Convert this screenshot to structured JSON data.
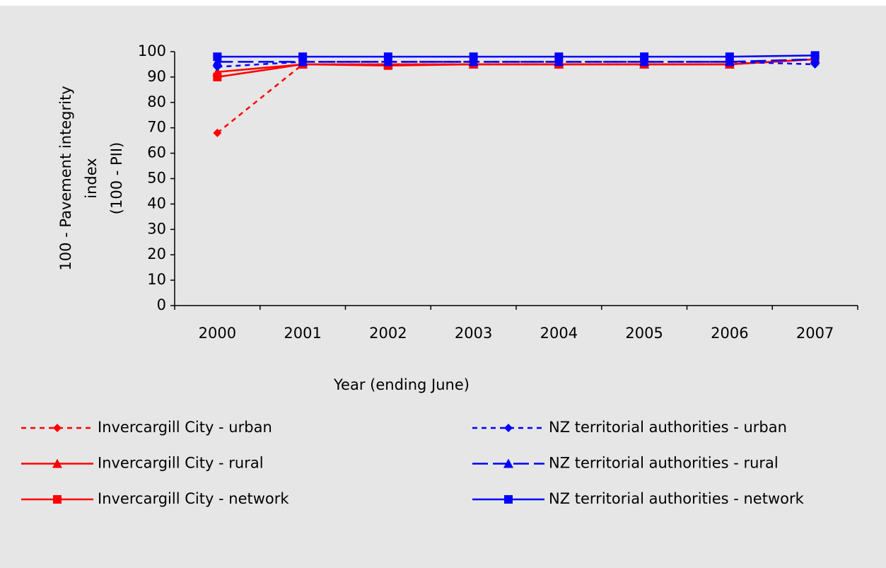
{
  "chart_data": {
    "type": "line",
    "y_label": [
      "100 - Pavement integrity",
      "index",
      "(100 - PII)"
    ],
    "x_label": "Year (ending June)",
    "categories": [
      "2000",
      "2001",
      "2002",
      "2003",
      "2004",
      "2005",
      "2006",
      "2007"
    ],
    "series": [
      {
        "name": "Invercargill City - urban",
        "color": "#ff0000",
        "dash": "dashed",
        "marker": "diamond",
        "values": [
          68,
          95,
          95,
          95,
          95,
          95,
          95,
          97
        ]
      },
      {
        "name": "Invercargill City - rural",
        "color": "#ff0000",
        "dash": "solid",
        "marker": "triangle",
        "values": [
          92,
          95,
          95,
          95,
          95,
          95,
          95,
          97
        ]
      },
      {
        "name": "Invercargill City - network",
        "color": "#ff0000",
        "dash": "solid",
        "marker": "square",
        "values": [
          90,
          95,
          94.5,
          95,
          95,
          95,
          95,
          97
        ]
      },
      {
        "name": "NZ territorial authorities - urban",
        "color": "#0000ff",
        "dash": "dashed",
        "marker": "diamond",
        "values": [
          94,
          96,
          96,
          96,
          96,
          96,
          96,
          95
        ]
      },
      {
        "name": "NZ territorial authorities - rural",
        "color": "#0000ff",
        "dash": "longdash",
        "marker": "triangle",
        "values": [
          96,
          96,
          96,
          96,
          96,
          96,
          96,
          97
        ]
      },
      {
        "name": "NZ territorial authorities - network",
        "color": "#0000ff",
        "dash": "solid",
        "marker": "square",
        "values": [
          98,
          98,
          98,
          98,
          98,
          98,
          98,
          98.5
        ]
      }
    ],
    "ylim": [
      0,
      100
    ],
    "yticks": [
      0,
      10,
      20,
      30,
      40,
      50,
      60,
      70,
      80,
      90,
      100
    ]
  }
}
